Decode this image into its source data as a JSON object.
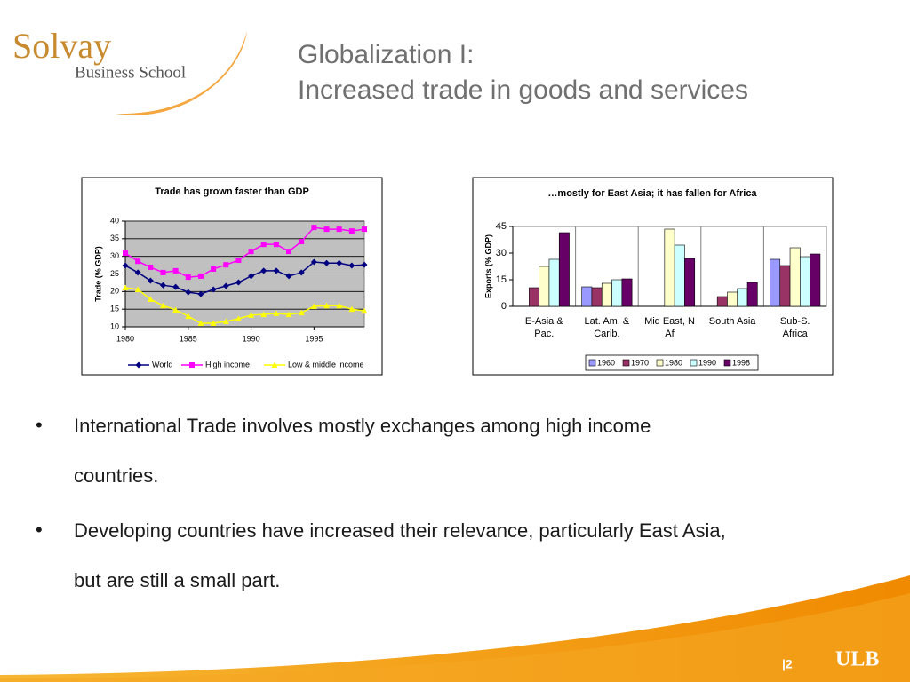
{
  "slide": {
    "title_lines": [
      "Globalization I:",
      "Increased trade in goods and services"
    ],
    "logo": {
      "name": "Solvay",
      "subtitle": "Business School"
    },
    "bullets": [
      [
        "International Trade involves mostly exchanges among high income",
        "countries."
      ],
      [
        "Developing countries have increased their relevance, particularly East Asia,",
        "but are still a small part."
      ]
    ],
    "page_number": "|2",
    "footer_logo": "ULB"
  },
  "chart_data": [
    {
      "type": "line",
      "title": "Trade has grown faster than GDP",
      "y_label": "Trade (% GDP)",
      "x": [
        1980,
        1981,
        1982,
        1983,
        1984,
        1985,
        1986,
        1987,
        1988,
        1989,
        1990,
        1991,
        1992,
        1993,
        1994,
        1995,
        1996,
        1997,
        1998,
        1999
      ],
      "xlim": [
        1980,
        1999
      ],
      "xticks": [
        1980,
        1985,
        1990,
        1995
      ],
      "ylim": [
        10,
        40
      ],
      "yticks": [
        10,
        15,
        20,
        25,
        30,
        35,
        40
      ],
      "grid": true,
      "legend": "bottom",
      "series": [
        {
          "name": "World",
          "color": "#000080",
          "marker": "diamond",
          "values": [
            27.4,
            25.4,
            23.1,
            21.8,
            21.3,
            19.8,
            19.3,
            20.6,
            21.6,
            22.6,
            24.4,
            25.9,
            25.9,
            24.4,
            25.4,
            28.4,
            28.1,
            28.1,
            27.4,
            27.6
          ]
        },
        {
          "name": "High income",
          "color": "#ff00ff",
          "marker": "square",
          "values": [
            30.9,
            28.6,
            26.9,
            25.4,
            25.9,
            24.1,
            24.4,
            26.4,
            27.6,
            28.9,
            31.4,
            33.4,
            33.4,
            31.4,
            34.2,
            38.2,
            37.7,
            37.7,
            37.2,
            37.7
          ]
        },
        {
          "name": "Low & middle income",
          "color": "#ffff00",
          "marker": "triangle",
          "values": [
            21.1,
            20.6,
            17.8,
            16.0,
            14.8,
            13.0,
            11.0,
            11.0,
            11.5,
            12.3,
            13.3,
            13.5,
            13.8,
            13.5,
            14.0,
            15.8,
            16.0,
            16.0,
            15.0,
            14.5
          ]
        }
      ]
    },
    {
      "type": "bar",
      "title": "…mostly for  East Asia;  it has  fallen for  Africa",
      "y_label": "Exports (% GDP)",
      "categories": [
        "E-Asia & Pac.",
        "Lat. Am. & Carib.",
        "Mid East, N Af",
        "South Asia",
        "Sub-S. Africa"
      ],
      "ylim": [
        0,
        45
      ],
      "yticks": [
        0,
        15,
        30,
        45
      ],
      "legend": "bottom",
      "series": [
        {
          "name": "1960",
          "color": "#9999ff",
          "values": [
            null,
            11,
            null,
            null,
            26.5
          ]
        },
        {
          "name": "1970",
          "color": "#993366",
          "values": [
            10.5,
            10.5,
            null,
            5.5,
            23
          ]
        },
        {
          "name": "1980",
          "color": "#ffffcc",
          "values": [
            22.5,
            13,
            43.5,
            8,
            33
          ]
        },
        {
          "name": "1990",
          "color": "#ccffff",
          "values": [
            26.5,
            15,
            34.5,
            10,
            28
          ]
        },
        {
          "name": "1998",
          "color": "#660066",
          "values": [
            41.5,
            15.5,
            27,
            13.5,
            29.5
          ]
        }
      ]
    }
  ]
}
